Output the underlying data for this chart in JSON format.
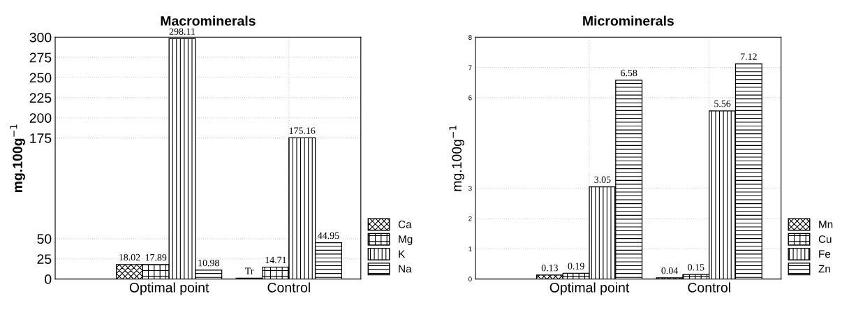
{
  "chart_data": [
    {
      "type": "bar",
      "title": "Macrominerals",
      "ylabel": "mg.100g$^{−1}$",
      "categories": [
        "Optimal point",
        "Control"
      ],
      "ylim": [
        0,
        300
      ],
      "yticks": [
        0,
        25,
        50,
        175,
        200,
        225,
        250,
        275,
        300
      ],
      "grid": true,
      "legend": "bottom right",
      "series": [
        {
          "name": "Ca",
          "color": "#000000",
          "values": [
            18.02,
            1
          ],
          "value_labels": [
            "18.02",
            "Tr"
          ]
        },
        {
          "name": "Mg",
          "color": "#000000",
          "values": [
            17.89,
            14.71
          ],
          "value_labels": [
            "17.89",
            "14.71"
          ]
        },
        {
          "name": "K",
          "color": "#000000",
          "values": [
            298.11,
            175.16
          ],
          "value_labels": [
            "298.11",
            "175.16"
          ]
        },
        {
          "name": "Na",
          "color": "#000000",
          "values": [
            10.98,
            44.95
          ],
          "value_labels": [
            "10.98",
            "44.95"
          ]
        }
      ]
    },
    {
      "type": "bar",
      "title": "Microminerals",
      "ylabel": "mg.100g$^{−1}$",
      "categories": [
        "Optimal point",
        "Control"
      ],
      "ylim": [
        0,
        8
      ],
      "yticks": [
        0,
        1,
        2,
        3,
        6,
        7,
        8
      ],
      "grid": true,
      "legend": "bottom right",
      "series": [
        {
          "name": "Mn",
          "color": "#000000",
          "values": [
            0.13,
            0.04
          ],
          "value_labels": [
            "0.13",
            "0.04"
          ]
        },
        {
          "name": "Cu",
          "color": "#000000",
          "values": [
            0.19,
            0.15
          ],
          "value_labels": [
            "0.19",
            "0.15"
          ]
        },
        {
          "name": "Fe",
          "color": "#000000",
          "values": [
            3.05,
            5.56
          ],
          "value_labels": [
            "3.05",
            "5.56"
          ]
        },
        {
          "name": "Zn",
          "color": "#000000",
          "values": [
            6.58,
            7.12
          ],
          "value_labels": [
            "6.58",
            "7.12"
          ]
        }
      ]
    }
  ]
}
